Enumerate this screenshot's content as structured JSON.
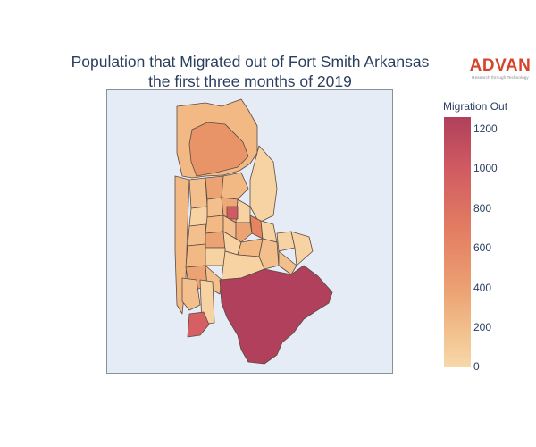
{
  "title": {
    "line1": "Population that Migrated out of Fort Smith Arkansas",
    "line2": "the first three months of 2019"
  },
  "logo": {
    "brand": "ADVAN",
    "tagline": "Research through Technology"
  },
  "legend": {
    "title": "Migration Out",
    "ticks": [
      "1200",
      "1000",
      "800",
      "600",
      "400",
      "200",
      "0"
    ],
    "range": [
      0,
      1260
    ],
    "colorscale": [
      "#f7d8a8",
      "#f2c490",
      "#eca374",
      "#e37d62",
      "#cf5a62",
      "#b0405b"
    ]
  },
  "colors": {
    "map_background": "#e5ecf6",
    "region_border": "#5a4a42",
    "title": "#2a3f5f"
  }
}
